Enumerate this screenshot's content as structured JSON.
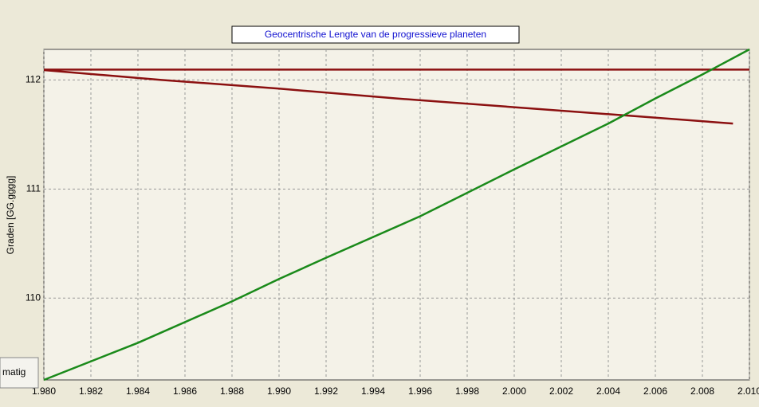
{
  "chart_data": {
    "type": "line",
    "title": "Geocentrische Lengte van de progressieve planeten",
    "y_label": "Graden [GG.gggg]",
    "button_label": "matig",
    "xlim": [
      1980,
      2010
    ],
    "xticks": [
      {
        "value": 1980,
        "label": "1.980"
      },
      {
        "value": 1982,
        "label": "1.982"
      },
      {
        "value": 1984,
        "label": "1.984"
      },
      {
        "value": 1986,
        "label": "1.986"
      },
      {
        "value": 1988,
        "label": "1.988"
      },
      {
        "value": 1990,
        "label": "1.990"
      },
      {
        "value": 1992,
        "label": "1.992"
      },
      {
        "value": 1994,
        "label": "1.994"
      },
      {
        "value": 1996,
        "label": "1.996"
      },
      {
        "value": 1998,
        "label": "1.998"
      },
      {
        "value": 2000,
        "label": "2.000"
      },
      {
        "value": 2002,
        "label": "2.002"
      },
      {
        "value": 2004,
        "label": "2.004"
      },
      {
        "value": 2006,
        "label": "2.006"
      },
      {
        "value": 2008,
        "label": "2.008"
      },
      {
        "value": 2010,
        "label": "2.010"
      }
    ],
    "ylim": [
      109.25,
      112.28
    ],
    "yticks": [
      110,
      111,
      112
    ],
    "grid": true,
    "series": [
      {
        "color": "#8b1010",
        "x": [
          1980,
          2010
        ],
        "values": [
          112.095,
          112.095
        ]
      },
      {
        "color": "#8b1010",
        "x": [
          1980,
          1985,
          1990,
          1995,
          2000,
          2005,
          2009.3
        ],
        "values": [
          112.09,
          112.0,
          111.92,
          111.83,
          111.75,
          111.67,
          111.6
        ]
      },
      {
        "color": "#1a8a1a",
        "x": [
          1980,
          1984,
          1988,
          1990,
          1992,
          1996,
          2000,
          2004,
          2006,
          2008,
          2010
        ],
        "values": [
          109.25,
          109.59,
          109.97,
          110.175,
          110.37,
          110.75,
          111.18,
          111.6,
          111.83,
          112.05,
          112.28
        ]
      }
    ]
  }
}
